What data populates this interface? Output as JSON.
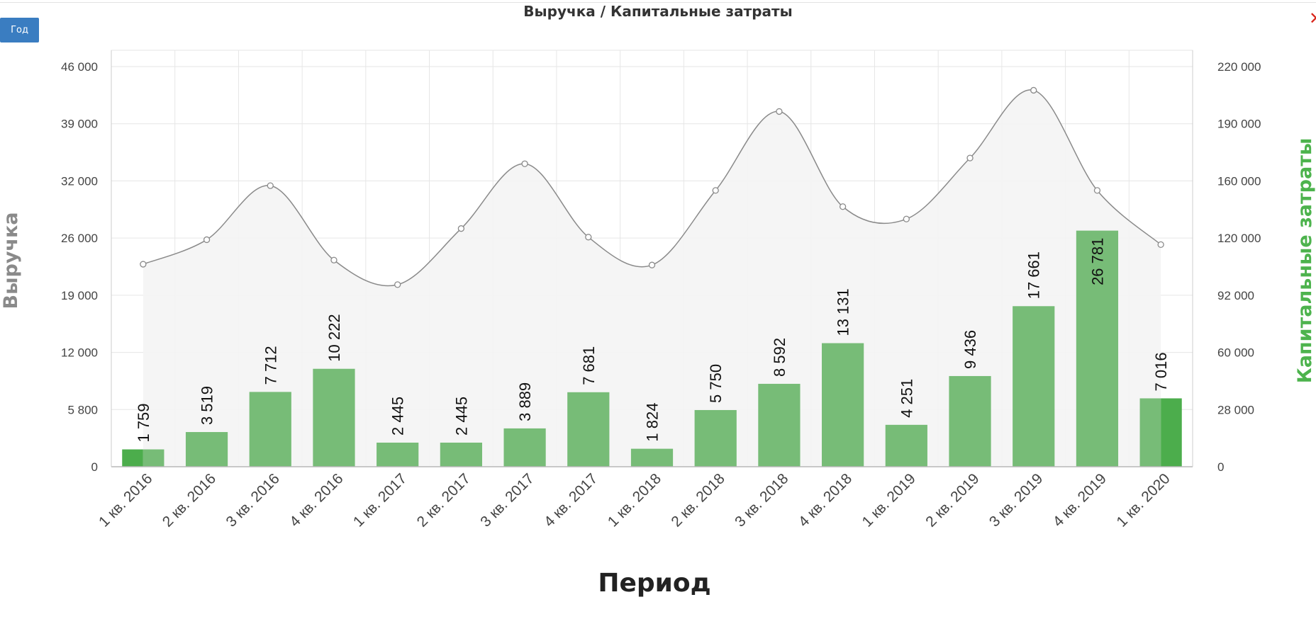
{
  "header": {
    "title": "Выручка / Капитальные затраты",
    "period_button_label": "Год",
    "close_icon": "close-icon",
    "close_glyph": "✕"
  },
  "colors": {
    "bar": "#77bc77",
    "bar_highlight": "#4cad4c",
    "line": "#8a8a8a",
    "area_fill": "#f4f4f4",
    "grid": "#e6e6e6",
    "left_axis_title": "#8a8a8a",
    "right_axis_title": "#4db34d",
    "button": "#3a7dc1"
  },
  "chart_data": {
    "type": "bar",
    "title": "Выручка / Капитальные затраты",
    "xlabel": "Период",
    "ylabel": "Выручка",
    "y2label": "Капитальные затраты",
    "categories": [
      "1 кв. 2016",
      "2 кв. 2016",
      "3 кв. 2016",
      "4 кв. 2016",
      "1 кв. 2017",
      "2 кв. 2017",
      "3 кв. 2017",
      "4 кв. 2017",
      "1 кв. 2018",
      "2 кв. 2018",
      "3 кв. 2018",
      "4 кв. 2018",
      "1 кв. 2019",
      "2 кв. 2019",
      "3 кв. 2019",
      "4 кв. 2019",
      "1 кв. 2020"
    ],
    "left_axis": {
      "ylim": [
        0,
        46000
      ],
      "tick_values": [
        0,
        5800,
        12000,
        19000,
        26000,
        32000,
        39000,
        46000
      ],
      "tick_labels": [
        "0",
        "5 800",
        "12 000",
        "19 000",
        "26 000",
        "32 000",
        "39 000",
        "46 000"
      ]
    },
    "right_axis": {
      "ylim": [
        0,
        220000
      ],
      "tick_values": [
        0,
        28000,
        60000,
        92000,
        120000,
        160000,
        190000,
        220000
      ],
      "tick_labels": [
        "0",
        "28 000",
        "60 000",
        "92 000",
        "120 000",
        "160 000",
        "190 000",
        "220 000"
      ]
    },
    "series": [
      {
        "type": "bar",
        "axis": "left",
        "values": [
          1759,
          3519,
          7712,
          10222,
          2445,
          2445,
          3889,
          7681,
          1824,
          5750,
          8592,
          13131,
          4251,
          9436,
          17661,
          26781,
          7016
        ],
        "labels": [
          "1 759",
          "3 519",
          "7 712",
          "10 222",
          "2 445",
          "2 445",
          "3 889",
          "7 681",
          "1 824",
          "5 750",
          "8 592",
          "13 131",
          "4 251",
          "9 436",
          "17 661",
          "26 781",
          "7 016"
        ]
      },
      {
        "type": "area-spline",
        "axis": "left",
        "values": [
          22800,
          25800,
          31500,
          23300,
          20300,
          27000,
          34100,
          26100,
          22700,
          31000,
          40500,
          29300,
          28000,
          34800,
          43100,
          31000,
          25200
        ]
      }
    ],
    "grid": true,
    "legend": "none"
  }
}
